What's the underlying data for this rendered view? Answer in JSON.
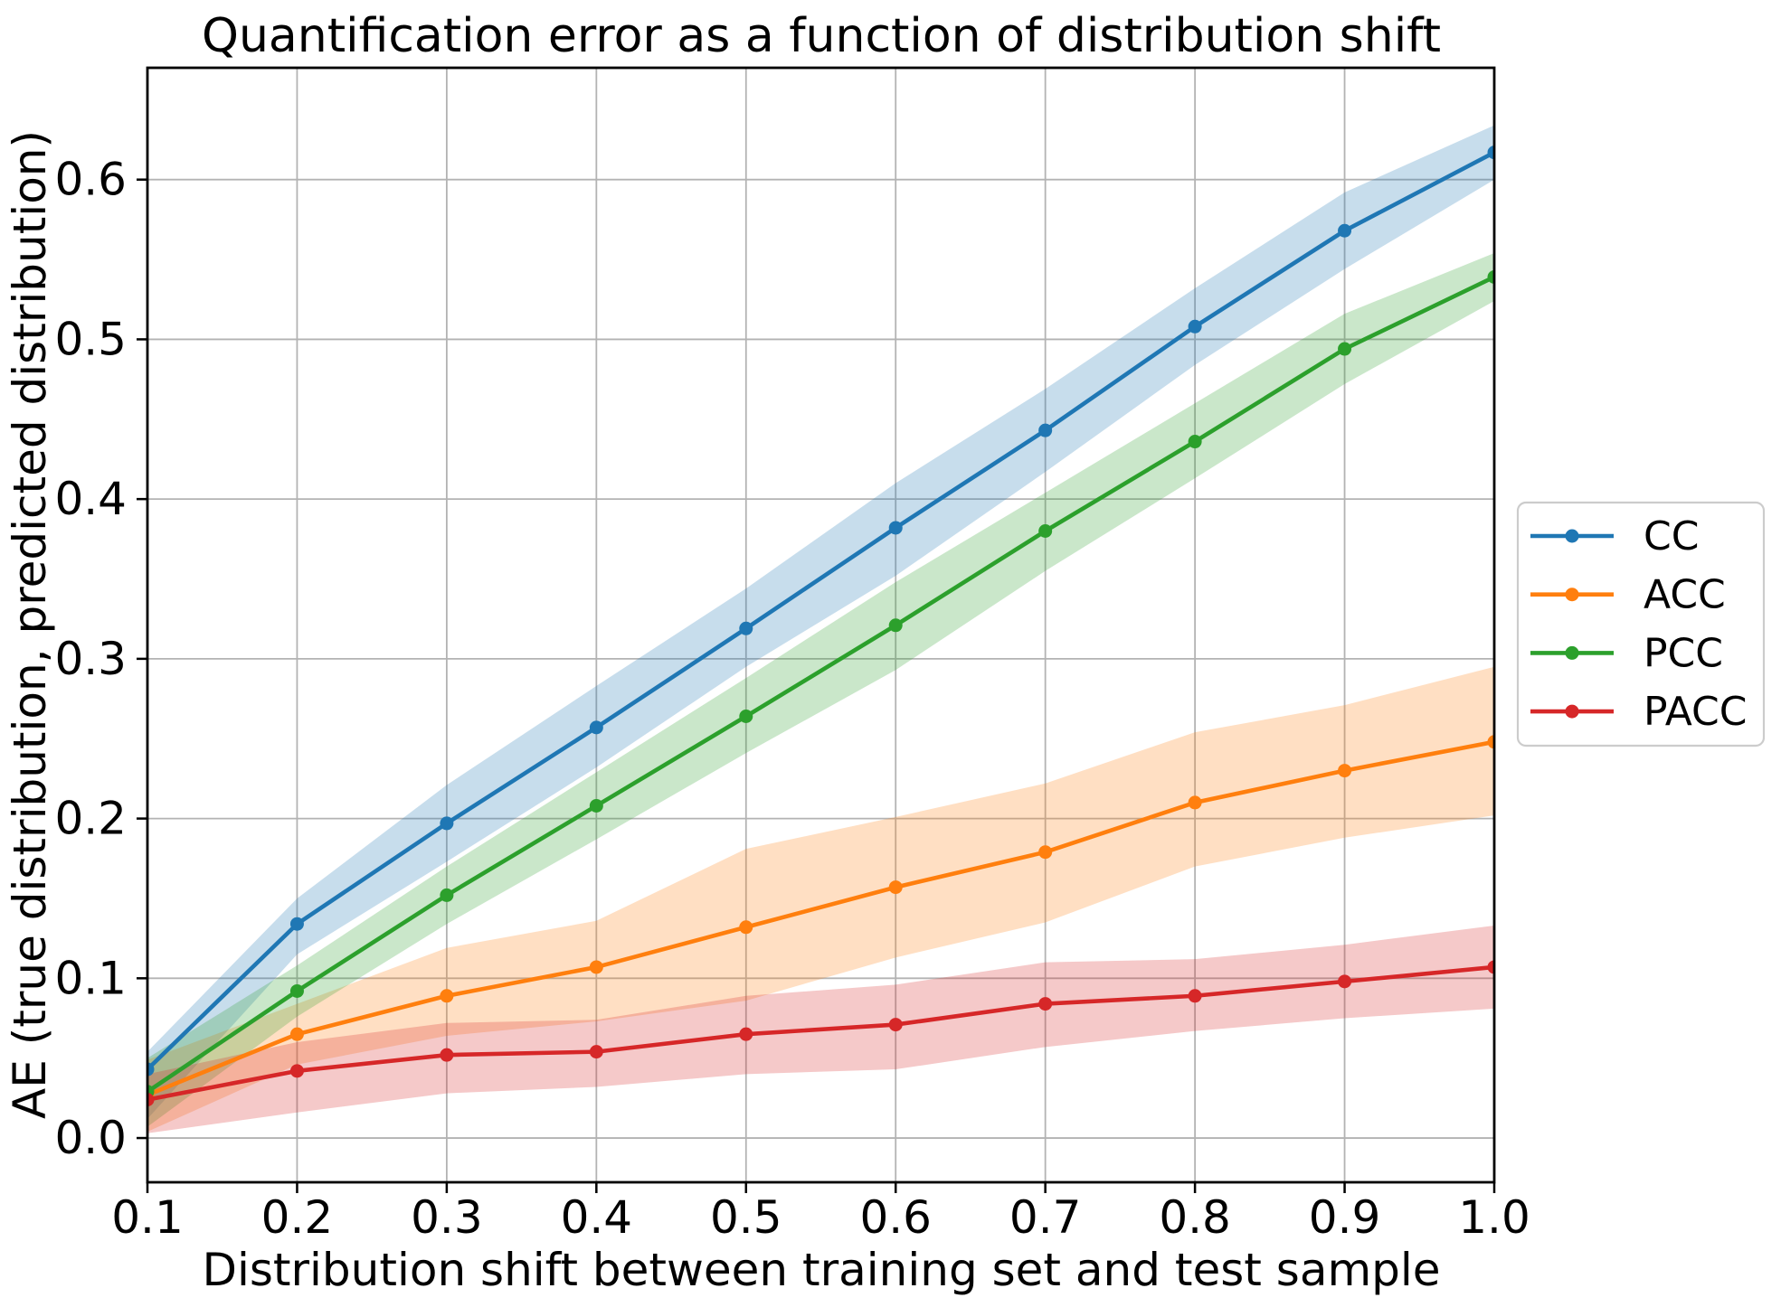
{
  "chart_data": {
    "type": "line",
    "title": "Quantification error as a function of distribution shift",
    "xlabel": "Distribution shift between training set and test sample",
    "ylabel": "AE (true distribution, predicted distribution)",
    "x": [
      0.1,
      0.2,
      0.3,
      0.4,
      0.5,
      0.6,
      0.7,
      0.8,
      0.9,
      1.0
    ],
    "xlim": [
      0.1,
      1.0
    ],
    "ylim": [
      -0.0277,
      0.67
    ],
    "xticks": [
      0.1,
      0.2,
      0.3,
      0.4,
      0.5,
      0.6,
      0.7,
      0.8,
      0.9,
      1.0
    ],
    "xtick_labels": [
      "0.1",
      "0.2",
      "0.3",
      "0.4",
      "0.5",
      "0.6",
      "0.7",
      "0.8",
      "0.9",
      "1.0"
    ],
    "yticks": [
      0.0,
      0.1,
      0.2,
      0.3,
      0.4,
      0.5,
      0.6
    ],
    "ytick_labels": [
      "0.0",
      "0.1",
      "0.2",
      "0.3",
      "0.4",
      "0.5",
      "0.6"
    ],
    "grid": true,
    "grid_color": "#b3b3b3",
    "background_color": "#ffffff",
    "band_alpha": 0.25,
    "marker": "circle",
    "legend_position": "outside center right",
    "series": [
      {
        "name": "CC",
        "color": "#1f77b4",
        "values": [
          0.043,
          0.134,
          0.197,
          0.257,
          0.319,
          0.382,
          0.443,
          0.508,
          0.568,
          0.617
        ],
        "band_lower": [
          0.012,
          0.115,
          0.173,
          0.232,
          0.295,
          0.352,
          0.417,
          0.484,
          0.544,
          0.6
        ],
        "band_upper": [
          0.054,
          0.15,
          0.221,
          0.283,
          0.344,
          0.41,
          0.469,
          0.532,
          0.592,
          0.634
        ]
      },
      {
        "name": "ACC",
        "color": "#ff7f0e",
        "values": [
          0.027,
          0.065,
          0.089,
          0.107,
          0.132,
          0.157,
          0.179,
          0.21,
          0.23,
          0.248
        ],
        "band_lower": [
          0.004,
          0.046,
          0.064,
          0.073,
          0.086,
          0.113,
          0.135,
          0.17,
          0.188,
          0.202
        ],
        "band_upper": [
          0.049,
          0.084,
          0.119,
          0.136,
          0.181,
          0.201,
          0.222,
          0.254,
          0.271,
          0.295
        ]
      },
      {
        "name": "PCC",
        "color": "#2ca02c",
        "values": [
          0.029,
          0.092,
          0.152,
          0.208,
          0.264,
          0.321,
          0.38,
          0.436,
          0.494,
          0.539
        ],
        "band_lower": [
          0.007,
          0.076,
          0.134,
          0.187,
          0.241,
          0.293,
          0.355,
          0.413,
          0.472,
          0.524
        ],
        "band_upper": [
          0.05,
          0.108,
          0.17,
          0.229,
          0.288,
          0.348,
          0.404,
          0.46,
          0.516,
          0.554
        ]
      },
      {
        "name": "PACC",
        "color": "#d62728",
        "values": [
          0.024,
          0.042,
          0.052,
          0.054,
          0.065,
          0.071,
          0.084,
          0.089,
          0.098,
          0.107
        ],
        "band_lower": [
          0.003,
          0.016,
          0.028,
          0.032,
          0.04,
          0.043,
          0.057,
          0.067,
          0.075,
          0.081
        ],
        "band_upper": [
          0.04,
          0.06,
          0.072,
          0.074,
          0.089,
          0.096,
          0.11,
          0.112,
          0.121,
          0.133
        ]
      }
    ]
  },
  "legend": {
    "items": [
      {
        "label": "CC",
        "color": "#1f77b4"
      },
      {
        "label": "ACC",
        "color": "#ff7f0e"
      },
      {
        "label": "PCC",
        "color": "#2ca02c"
      },
      {
        "label": "PACC",
        "color": "#d62728"
      }
    ]
  }
}
